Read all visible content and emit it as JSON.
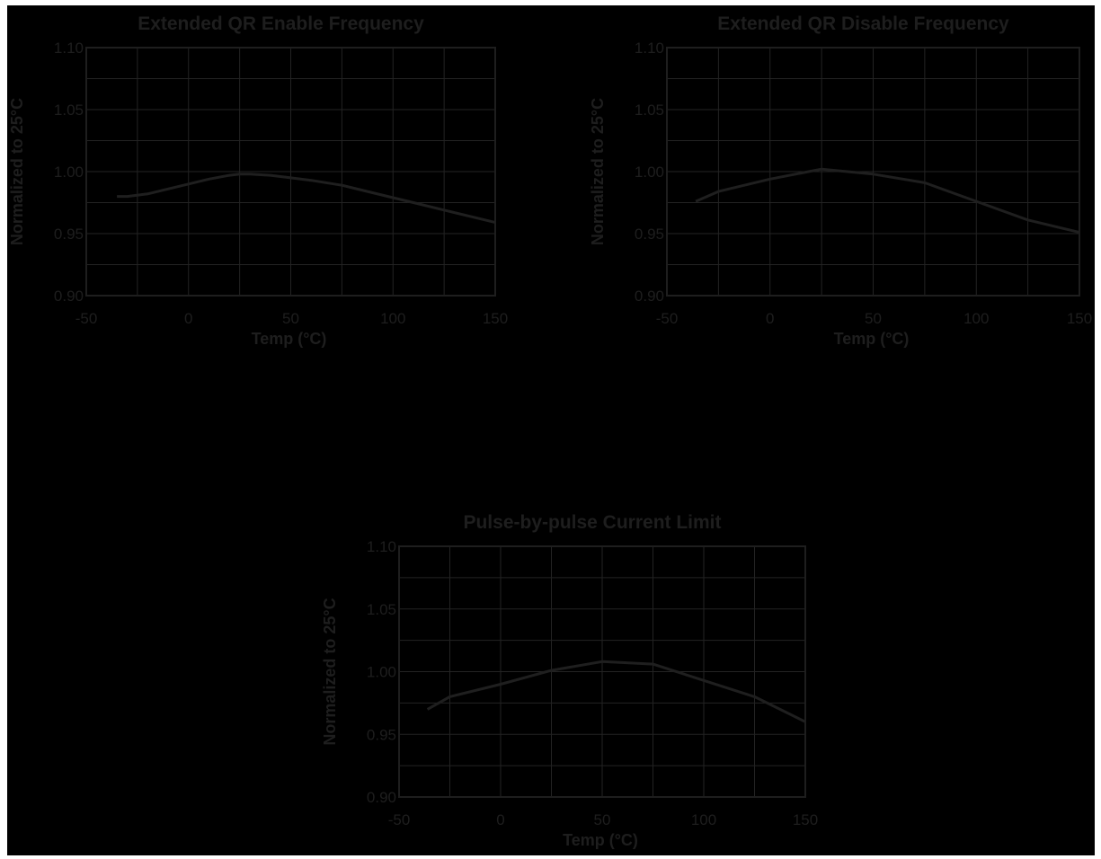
{
  "chart_data": [
    {
      "type": "line",
      "title": "Extended QR Enable Frequency",
      "xlabel": "Temp (°C)",
      "ylabel": "Normalized to 25°C",
      "xlim": [
        -50,
        150
      ],
      "ylim": [
        0.9,
        1.1
      ],
      "xticks": [
        "-50",
        "0",
        "50",
        "100",
        "150"
      ],
      "yticks": [
        "0.90",
        "0.95",
        "1.00",
        "1.05",
        "1.10"
      ],
      "grid": true,
      "series": [
        {
          "x": [
            -35,
            -30,
            -20,
            -10,
            0,
            10,
            20,
            25,
            30,
            40,
            50,
            60,
            75,
            90,
            100,
            110,
            125,
            140,
            150
          ],
          "y": [
            0.98,
            0.98,
            0.982,
            0.986,
            0.99,
            0.994,
            0.997,
            0.998,
            0.998,
            0.997,
            0.995,
            0.993,
            0.989,
            0.983,
            0.979,
            0.975,
            0.969,
            0.963,
            0.959
          ]
        }
      ]
    },
    {
      "type": "line",
      "title": "Extended QR Disable Frequency",
      "xlabel": "Temp (°C)",
      "ylabel": "Normalized to 25°C",
      "xlim": [
        -50,
        150
      ],
      "ylim": [
        0.9,
        1.1
      ],
      "xticks": [
        "-50",
        "0",
        "50",
        "100",
        "150"
      ],
      "yticks": [
        "0.90",
        "0.95",
        "1.00",
        "1.05",
        "1.10"
      ],
      "grid": true,
      "series": [
        {
          "x": [
            -36,
            -25,
            0,
            25,
            50,
            75,
            100,
            125,
            150
          ],
          "y": [
            0.976,
            0.984,
            0.994,
            1.002,
            0.998,
            0.991,
            0.976,
            0.961,
            0.951
          ]
        }
      ]
    },
    {
      "type": "line",
      "title": "Pulse-by-pulse Current Limit",
      "xlabel": "Temp (°C)",
      "ylabel": "Normalized to 25°C",
      "xlim": [
        -50,
        150
      ],
      "ylim": [
        0.9,
        1.1
      ],
      "xticks": [
        "-50",
        "0",
        "50",
        "100",
        "150"
      ],
      "yticks": [
        "0.90",
        "0.95",
        "1.00",
        "1.05",
        "1.10"
      ],
      "grid": true,
      "series": [
        {
          "x": [
            -36,
            -25,
            0,
            25,
            50,
            75,
            100,
            125,
            150
          ],
          "y": [
            0.97,
            0.98,
            0.99,
            1.001,
            1.008,
            1.006,
            0.993,
            0.98,
            0.96
          ]
        }
      ]
    }
  ],
  "colors": {
    "background": "#000000",
    "frame": "#1e1e1e",
    "grid": "#232323",
    "series": "#1f1f1f",
    "text": "#1e1e1e"
  }
}
